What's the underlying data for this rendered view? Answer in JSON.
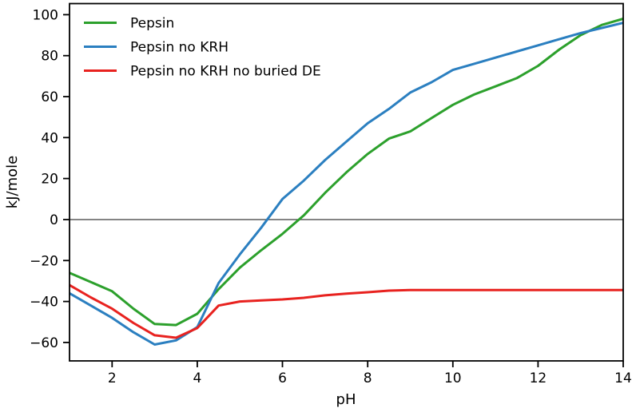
{
  "figure": {
    "background": "#ffffff",
    "axis_color": "#000000",
    "zero_line_color": "#3a3a3a"
  },
  "chart_data": {
    "type": "line",
    "title": "",
    "xlabel": "pH",
    "ylabel": "kJ/mole",
    "xlim": [
      1,
      14
    ],
    "ylim": [
      -69,
      105.4
    ],
    "x_ticks": [
      2,
      4,
      6,
      8,
      10,
      12,
      14
    ],
    "y_ticks": [
      -60,
      -40,
      -20,
      0,
      20,
      40,
      60,
      80,
      100
    ],
    "grid": false,
    "zero_line": 0,
    "legend_position": "upper-left",
    "legend_frame": false,
    "x": [
      1,
      1.5,
      2,
      2.5,
      3,
      3.5,
      4,
      4.5,
      5,
      5.5,
      6,
      6.5,
      7,
      7.5,
      8,
      8.5,
      9,
      9.5,
      10,
      10.5,
      11,
      11.5,
      12,
      12.5,
      13,
      13.5,
      14
    ],
    "series": [
      {
        "name": "Pepsin",
        "color": "#2ca02c",
        "values": [
          -26,
          -30.5,
          -35,
          -43.5,
          -51,
          -51.5,
          -46,
          -34,
          -23.5,
          -15,
          -7,
          2,
          13,
          23,
          32,
          39.5,
          43,
          49.5,
          56,
          61,
          65,
          69,
          75,
          83,
          90,
          95,
          98
        ]
      },
      {
        "name": "Pepsin no KRH",
        "color": "#2b7fc0",
        "values": [
          -36,
          -42,
          -48,
          -55,
          -61,
          -59,
          -52.5,
          -31,
          -17,
          -4,
          10,
          19,
          29,
          38,
          47,
          54,
          62,
          67,
          73,
          76,
          79,
          82,
          85,
          88,
          91,
          93.5,
          96
        ]
      },
      {
        "name": "Pepsin no KRH no buried DE",
        "color": "#e8221f",
        "values": [
          -32,
          -38,
          -43.5,
          -50.5,
          -56.5,
          -57.7,
          -53,
          -42,
          -40,
          -39.5,
          -39,
          -38.2,
          -37,
          -36.2,
          -35.5,
          -34.7,
          -34.4,
          -34.4,
          -34.4,
          -34.4,
          -34.4,
          -34.4,
          -34.4,
          -34.4,
          -34.4,
          -34.4,
          -34.4
        ]
      }
    ]
  }
}
